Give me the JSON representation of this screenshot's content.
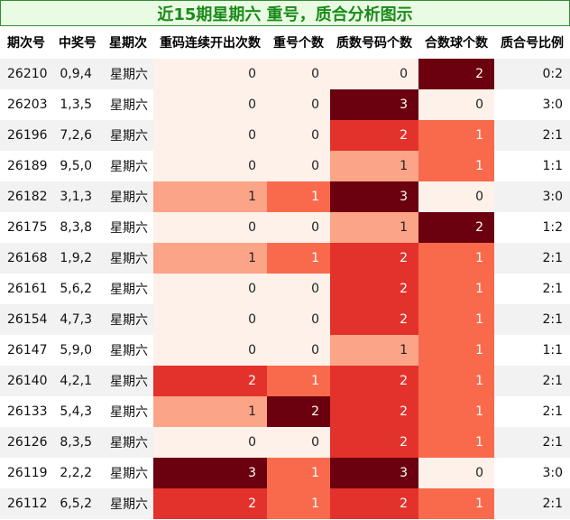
{
  "title": "近15期星期六 重号，质合分析图示",
  "colors": {
    "title_text": "#1a8a1a",
    "title_bg": "#e9fbe3",
    "title_border": "#2f8f2f",
    "row_alt": "#f2f2f2",
    "row_base": "#ffffff",
    "heat_levels": [
      "#fdf1ea",
      "#fca487",
      "#f96a4c",
      "#e3322b",
      "#6b010e"
    ]
  },
  "chart_data": {
    "type": "table",
    "title": "近15期星期六 重号，质合分析图示",
    "columns": [
      "期次号",
      "中奖号",
      "星期次",
      "重码连续开出次数",
      "重号个数",
      "质数号码个数",
      "合数球个数",
      "质合号比例"
    ],
    "heatmap_columns": [
      "重码连续开出次数",
      "重号个数",
      "质数号码个数",
      "合数球个数"
    ],
    "rows": [
      [
        "26210",
        "0,9,4",
        "星期六",
        "0",
        "0",
        "0",
        "2",
        "0:2"
      ],
      [
        "26203",
        "1,3,5",
        "星期六",
        "0",
        "0",
        "3",
        "0",
        "3:0"
      ],
      [
        "26196",
        "7,2,6",
        "星期六",
        "0",
        "0",
        "2",
        "1",
        "2:1"
      ],
      [
        "26189",
        "9,5,0",
        "星期六",
        "0",
        "0",
        "1",
        "1",
        "1:1"
      ],
      [
        "26182",
        "3,1,3",
        "星期六",
        "1",
        "1",
        "3",
        "0",
        "3:0"
      ],
      [
        "26175",
        "8,3,8",
        "星期六",
        "0",
        "0",
        "1",
        "2",
        "1:2"
      ],
      [
        "26168",
        "1,9,2",
        "星期六",
        "1",
        "1",
        "2",
        "1",
        "2:1"
      ],
      [
        "26161",
        "5,6,2",
        "星期六",
        "0",
        "0",
        "2",
        "1",
        "2:1"
      ],
      [
        "26154",
        "4,7,3",
        "星期六",
        "0",
        "0",
        "2",
        "1",
        "2:1"
      ],
      [
        "26147",
        "5,9,0",
        "星期六",
        "0",
        "0",
        "1",
        "1",
        "1:1"
      ],
      [
        "26140",
        "4,2,1",
        "星期六",
        "2",
        "1",
        "2",
        "1",
        "2:1"
      ],
      [
        "26133",
        "5,4,3",
        "星期六",
        "1",
        "2",
        "2",
        "1",
        "2:1"
      ],
      [
        "26126",
        "8,3,5",
        "星期六",
        "0",
        "0",
        "2",
        "1",
        "2:1"
      ],
      [
        "26119",
        "2,2,2",
        "星期六",
        "3",
        "1",
        "3",
        "0",
        "3:0"
      ],
      [
        "26112",
        "6,5,2",
        "星期六",
        "2",
        "1",
        "2",
        "1",
        "2:1"
      ]
    ]
  }
}
